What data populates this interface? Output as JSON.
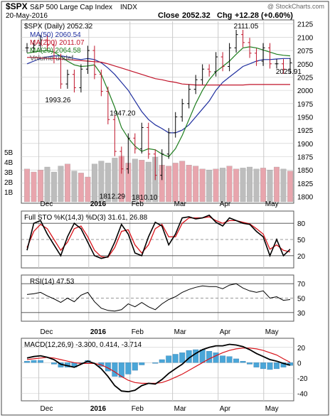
{
  "header": {
    "symbol": "$SPX",
    "name": "S&P 500 Large Cap Index",
    "exchange": "INDX",
    "date": "20-May-2016",
    "close_label": "Close",
    "close_value": "2052.32",
    "chg_label": "Chg",
    "chg_value": "+12.28 (+0.60%)",
    "brand": "@ StockCharts.com"
  },
  "colors": {
    "price": "#000000",
    "ma50": "#1f2f9f",
    "ma200": "#c0142a",
    "ma20": "#1e7d1e",
    "volume_up": "#e8a5ad",
    "volume_down": "#bdbdbd",
    "sto_k": "#000000",
    "sto_d": "#d8141b",
    "rsi": "#000000",
    "macd": "#000000",
    "macd_signal": "#d8141b",
    "histogram": "#4aa6d8",
    "grid": "#c8c8c8"
  },
  "chart_data": [
    {
      "type": "line",
      "panel": "price",
      "title": "$SPX (Daily) 2052.32",
      "x": [
        "2015-11-23",
        "2015-11-30",
        "2015-12-01",
        "2015-12-04",
        "2015-12-08",
        "2015-12-11",
        "2015-12-14",
        "2015-12-18",
        "2015-12-22",
        "2015-12-29",
        "2016-01-04",
        "2016-01-08",
        "2016-01-12",
        "2016-01-15",
        "2016-01-20",
        "2016-01-22",
        "2016-01-27",
        "2016-02-01",
        "2016-02-05",
        "2016-02-11",
        "2016-02-16",
        "2016-02-22",
        "2016-02-26",
        "2016-03-02",
        "2016-03-07",
        "2016-03-11",
        "2016-03-17",
        "2016-03-23",
        "2016-03-31",
        "2016-04-07",
        "2016-04-14",
        "2016-04-20",
        "2016-04-27",
        "2016-05-03",
        "2016-05-06",
        "2016-05-10",
        "2016-05-13",
        "2016-05-17",
        "2016-05-19",
        "2016-05-20"
      ],
      "series": [
        {
          "name": "$SPX (Daily) 2052.32",
          "style": "ohlc",
          "values": [
            2080,
            2085,
            2095,
            2085,
            2060,
            2012,
            2030,
            2005,
            2040,
            2075,
            2030,
            1998,
            1945,
            1885,
            1852,
            1910,
            1890,
            1930,
            1880,
            1840,
            1880,
            1920,
            1950,
            1975,
            2002,
            2020,
            2040,
            2035,
            2063,
            2045,
            2080,
            2105,
            2090,
            2070,
            2055,
            2080,
            2050,
            2050,
            2040,
            2052
          ]
        },
        {
          "name": "MA(50) 2060.54",
          "values": [
            2050,
            2055,
            2060,
            2063,
            2065,
            2065,
            2063,
            2060,
            2058,
            2060,
            2058,
            2052,
            2042,
            2030,
            2015,
            2000,
            1980,
            1960,
            1945,
            1935,
            1928,
            1920,
            1920,
            1925,
            1935,
            1950,
            1965,
            1980,
            2000,
            2015,
            2025,
            2035,
            2045,
            2050,
            2055,
            2058,
            2058,
            2059,
            2060,
            2060
          ]
        },
        {
          "name": "MA(200) 2011.07",
          "values": [
            2062,
            2062,
            2061,
            2060,
            2060,
            2059,
            2058,
            2057,
            2056,
            2055,
            2054,
            2053,
            2050,
            2046,
            2042,
            2038,
            2034,
            2030,
            2026,
            2022,
            2020,
            2017,
            2015,
            2012,
            2011,
            2010,
            2010,
            2010,
            2010,
            2010,
            2010,
            2010,
            2010,
            2011,
            2011,
            2011,
            2011,
            2011,
            2011,
            2011
          ]
        },
        {
          "name": "MA(20) 2064.58",
          "values": [
            2070,
            2072,
            2074,
            2075,
            2072,
            2064,
            2055,
            2048,
            2045,
            2046,
            2048,
            2030,
            2000,
            1968,
            1930,
            1910,
            1895,
            1885,
            1890,
            1888,
            1880,
            1875,
            1890,
            1915,
            1945,
            1975,
            2000,
            2020,
            2035,
            2045,
            2055,
            2068,
            2080,
            2082,
            2080,
            2076,
            2072,
            2068,
            2066,
            2065
          ]
        }
      ],
      "annotations": [
        {
          "label": "1993.26",
          "x": "2015-12-14",
          "y": 1993.26
        },
        {
          "label": "1947.20",
          "x": "2016-01-27",
          "y": 1947.2
        },
        {
          "label": "1812.29",
          "x": "2016-01-20",
          "y": 1812.29
        },
        {
          "label": "1810.10",
          "x": "2016-02-11",
          "y": 1810.1
        },
        {
          "label": "2111.05",
          "x": "2016-04-20",
          "y": 2111.05
        },
        {
          "label": "2025.91",
          "x": "2016-05-19",
          "y": 2025.91
        }
      ],
      "ylim": [
        1790,
        2130
      ],
      "y_ticks": [
        1800,
        1825,
        1850,
        1875,
        1900,
        1925,
        1950,
        1975,
        2000,
        2025,
        2050,
        2075,
        2100,
        2125
      ]
    },
    {
      "type": "bar",
      "panel": "volume",
      "title": "Volume undef",
      "y_ticks": [
        "1B",
        "2B",
        "3B",
        "4B",
        "5B"
      ],
      "ylim": [
        0,
        6
      ],
      "values": [
        3.3,
        3.0,
        3.2,
        3.5,
        3.0,
        3.6,
        3.8,
        3.1,
        2.9,
        2.5,
        3.8,
        4.1,
        3.9,
        4.4,
        4.6,
        3.9,
        4.3,
        4.2,
        4.0,
        4.5,
        3.7,
        3.6,
        3.9,
        4.1,
        3.7,
        3.6,
        3.3,
        3.2,
        3.3,
        3.4,
        3.6,
        3.3,
        3.4,
        3.5,
        3.3,
        3.4,
        3.2,
        3.5,
        3.3,
        3.1
      ],
      "up": [
        true,
        true,
        true,
        false,
        false,
        false,
        true,
        false,
        true,
        true,
        false,
        false,
        false,
        false,
        true,
        true,
        false,
        true,
        false,
        false,
        true,
        true,
        true,
        true,
        true,
        true,
        true,
        false,
        true,
        false,
        true,
        true,
        false,
        false,
        false,
        true,
        false,
        true,
        false,
        true
      ]
    },
    {
      "type": "line",
      "panel": "stochastic",
      "title": "Full STO %K(14,3) %D(3) 31.61, 26.88",
      "ylim": [
        0,
        100
      ],
      "y_ticks": [
        20,
        50,
        80
      ],
      "series": [
        {
          "name": "%K",
          "values": [
            30,
            80,
            85,
            60,
            40,
            20,
            55,
            80,
            70,
            45,
            20,
            15,
            18,
            45,
            78,
            60,
            25,
            20,
            55,
            82,
            75,
            40,
            60,
            90,
            92,
            88,
            90,
            95,
            82,
            75,
            90,
            85,
            80,
            78,
            65,
            55,
            20,
            50,
            20,
            32
          ]
        },
        {
          "name": "%D",
          "values": [
            35,
            65,
            78,
            70,
            50,
            30,
            45,
            70,
            75,
            55,
            30,
            18,
            17,
            35,
            65,
            68,
            40,
            25,
            40,
            70,
            78,
            55,
            55,
            80,
            90,
            90,
            90,
            92,
            85,
            80,
            85,
            85,
            82,
            79,
            70,
            60,
            32,
            40,
            30,
            27
          ]
        }
      ]
    },
    {
      "type": "line",
      "panel": "rsi",
      "title": "RSI(14) 47.53",
      "ylim": [
        20,
        80
      ],
      "y_ticks": [
        30,
        50,
        70
      ],
      "series": [
        {
          "name": "RSI(14)",
          "values": [
            55,
            56,
            58,
            53,
            49,
            44,
            50,
            45,
            54,
            58,
            45,
            36,
            33,
            32,
            34,
            42,
            38,
            44,
            38,
            34,
            42,
            48,
            52,
            58,
            62,
            65,
            67,
            66,
            66,
            63,
            68,
            70,
            64,
            60,
            58,
            60,
            50,
            52,
            47,
            48
          ]
        }
      ]
    },
    {
      "type": "line",
      "panel": "macd",
      "title": "MACD(12,26,9) -3.300, 0.414, -3.714",
      "ylim": [
        -48,
        30
      ],
      "y_ticks": [
        -40,
        -20,
        0,
        20
      ],
      "series": [
        {
          "name": "MACD(12,26,9) -3.300",
          "values": [
            6,
            8,
            9,
            7,
            4,
            -2,
            -4,
            -6,
            -2,
            2,
            -1,
            -8,
            -18,
            -30,
            -37,
            -38,
            -36,
            -30,
            -27,
            -28,
            -22,
            -14,
            -8,
            -2,
            6,
            12,
            17,
            20,
            22,
            22,
            24,
            23,
            21,
            17,
            12,
            8,
            4,
            2,
            -1,
            -3.3
          ]
        },
        {
          "name": "signal 0.414",
          "values": [
            4,
            5,
            6,
            7,
            6,
            4,
            2,
            0,
            -1,
            -1,
            -1,
            -3,
            -7,
            -12,
            -18,
            -23,
            -26,
            -27,
            -27,
            -27,
            -26,
            -23,
            -19,
            -15,
            -10,
            -5,
            0,
            5,
            9,
            13,
            16,
            18,
            19,
            19,
            18,
            16,
            13,
            10,
            5,
            0.4
          ]
        },
        {
          "name": "histogram -3.714",
          "values": [
            2,
            3,
            3,
            0,
            -2,
            -6,
            -6,
            -6,
            -1,
            3,
            0,
            -5,
            -11,
            -18,
            -19,
            -15,
            -10,
            -3,
            0,
            -1,
            4,
            9,
            11,
            13,
            16,
            17,
            17,
            15,
            13,
            9,
            8,
            5,
            2,
            -2,
            -6,
            -8,
            -9,
            -8,
            -6,
            -3.7
          ]
        }
      ]
    }
  ],
  "x_axis_labels": [
    "Dec",
    "2016",
    "Feb",
    "Mar",
    "Apr",
    "May"
  ]
}
